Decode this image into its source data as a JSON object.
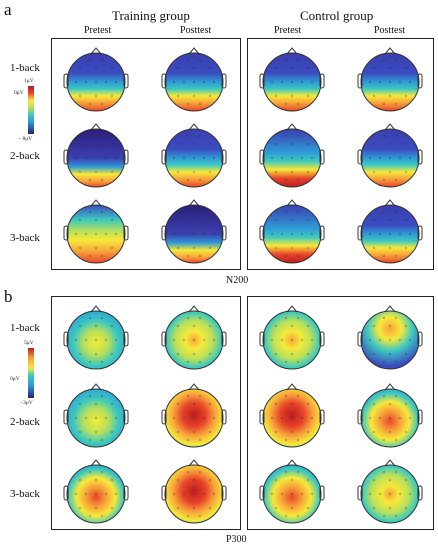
{
  "panel_a": {
    "letter": "a",
    "groups": [
      "Training group",
      "Control group"
    ],
    "columns": [
      "Pretest",
      "Posttest",
      "Pretest",
      "Posttest"
    ],
    "rows": [
      "1-back",
      "2-back",
      "3-back"
    ],
    "colorbar": {
      "max": "1μV",
      "mid": "0μV",
      "min": "− 8μV"
    },
    "caption": "N200"
  },
  "panel_b": {
    "letter": "b",
    "rows": [
      "1-back",
      "2-back",
      "3-back"
    ],
    "colorbar": {
      "max": "5μV",
      "mid": "0μV",
      "min": "−3μV"
    },
    "caption": "P300"
  },
  "colors": {
    "scale": [
      "#2b1f7a",
      "#3b4cc0",
      "#2f9ad6",
      "#3cc8c0",
      "#b8e05a",
      "#f6e93a",
      "#f7a33a",
      "#e8452a",
      "#b81e1e"
    ]
  }
}
